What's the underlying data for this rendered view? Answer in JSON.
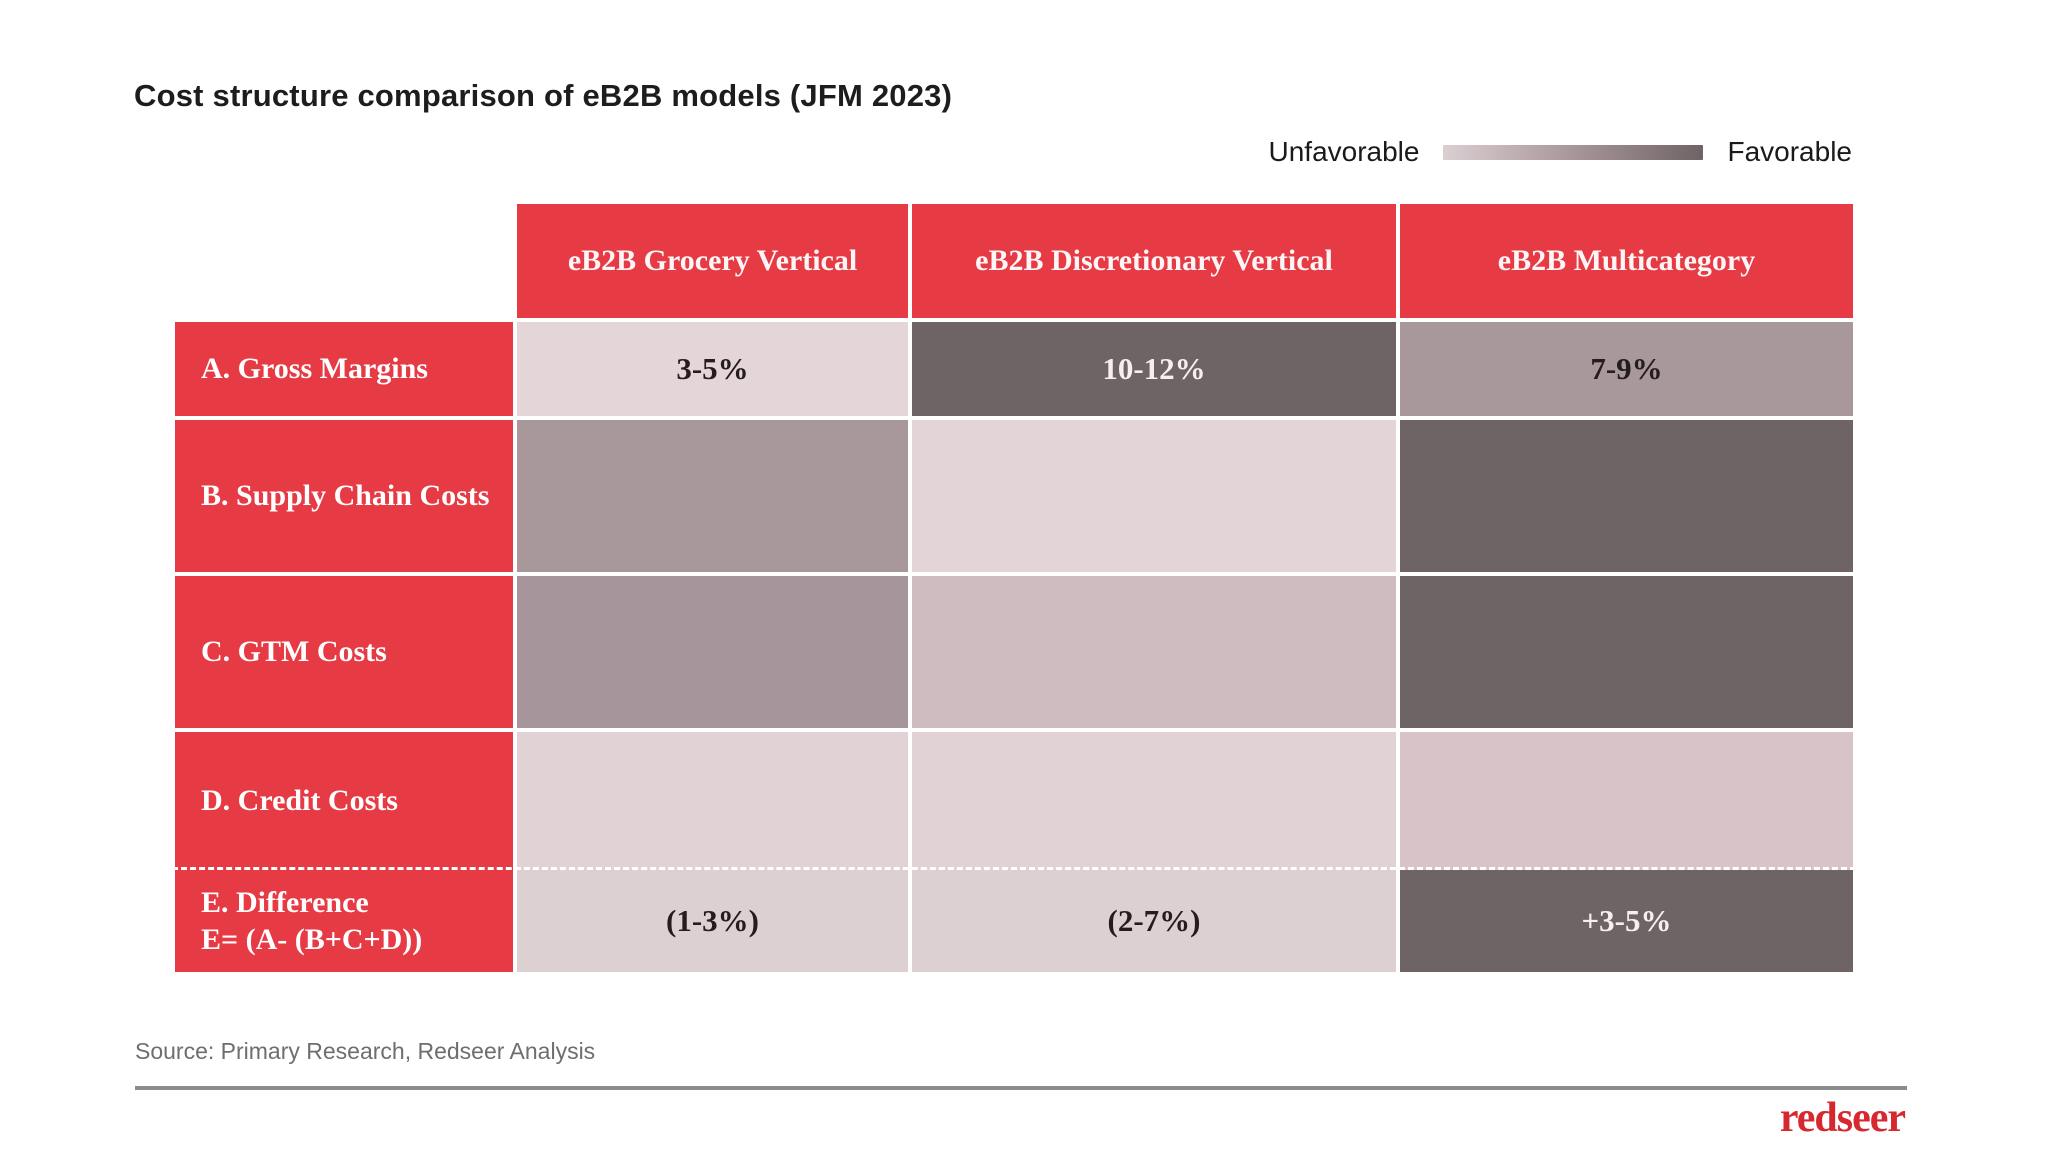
{
  "title": "Cost structure comparison of eB2B models (JFM 2023)",
  "legend": {
    "left_label": "Unfavorable",
    "right_label": "Favorable",
    "gradient_css": "linear-gradient(to right, #dbcfd2, #a8969a, #6e6365)"
  },
  "colors": {
    "red": "#e63a45",
    "logored": "#d7282f",
    "dark": "#6e6365",
    "lighttext": "#f6eff1",
    "darktext": "#241c1e"
  },
  "table": {
    "columns": [
      {
        "label": "eB2B Grocery Vertical"
      },
      {
        "label": "eB2B Discretionary Vertical"
      },
      {
        "label": "eB2B Multicategory"
      }
    ],
    "rows": [
      {
        "label": "A. Gross Margins",
        "cells": [
          {
            "text": "3-5%",
            "bg": "#e3d5d8",
            "fg": "#241c1e"
          },
          {
            "text": "10-12%",
            "bg": "#6e6365",
            "fg": "#f6eff1"
          },
          {
            "text": "7-9%",
            "bg": "#a8979b",
            "fg": "#241c1e"
          }
        ]
      },
      {
        "label": "B. Supply Chain Costs",
        "cells": [
          {
            "text": "",
            "bg": "#a8979b"
          },
          {
            "text": "",
            "bg": "#e2d4d7"
          },
          {
            "text": "",
            "bg": "#6e6365"
          }
        ]
      },
      {
        "label": "C. GTM Costs",
        "cells": [
          {
            "text": "",
            "bg": "#a6959a"
          },
          {
            "text": "",
            "bg": "#cfbcc0"
          },
          {
            "text": "",
            "bg": "#6e6365"
          }
        ]
      },
      {
        "label": "D. Credit Costs",
        "cells": [
          {
            "text": "",
            "bg": "#e0d2d5"
          },
          {
            "text": "",
            "bg": "#e0d2d5"
          },
          {
            "text": "",
            "bg": "#d8c4c8"
          }
        ]
      },
      {
        "label": "E. Difference",
        "label_line2": "E= (A- (B+C+D))",
        "cells": [
          {
            "text": "(1-3%)",
            "bg": "#ddd0d3",
            "fg": "#241c1e"
          },
          {
            "text": "(2-7%)",
            "bg": "#ddd0d3",
            "fg": "#241c1e"
          },
          {
            "text": "+3-5%",
            "bg": "#6e6365",
            "fg": "#f6eff1"
          }
        ]
      }
    ]
  },
  "source": "Source: Primary Research, Redseer Analysis",
  "logo_text": "redseer",
  "chart_data": {
    "type": "heatmap",
    "title": "Cost structure comparison of eB2B models (JFM 2023)",
    "columns": [
      "eB2B Grocery Vertical",
      "eB2B Discretionary Vertical",
      "eB2B Multicategory"
    ],
    "rows": [
      "A. Gross Margins",
      "B. Supply Chain Costs",
      "C. GTM Costs",
      "D. Credit Costs",
      "E. Difference E= (A- (B+C+D))"
    ],
    "cell_text": [
      [
        "3-5%",
        "10-12%",
        "7-9%"
      ],
      [
        "",
        "",
        ""
      ],
      [
        "",
        "",
        ""
      ],
      [
        "",
        "",
        ""
      ],
      [
        "(1-3%)",
        "(2-7%)",
        "+3-5%"
      ]
    ],
    "favorability_0to1_light_is_unfavorable": [
      [
        0.1,
        0.9,
        0.5
      ],
      [
        0.5,
        0.1,
        0.9
      ],
      [
        0.5,
        0.3,
        0.9
      ],
      [
        0.1,
        0.1,
        0.2
      ],
      [
        0.1,
        0.1,
        0.9
      ]
    ],
    "legend": {
      "left": "Unfavorable",
      "right": "Favorable",
      "scale": "light = Unfavorable, dark = Favorable"
    },
    "annotations": [
      "Row E outlined with white dashed border across all columns"
    ],
    "source": "Source: Primary Research, Redseer Analysis"
  }
}
